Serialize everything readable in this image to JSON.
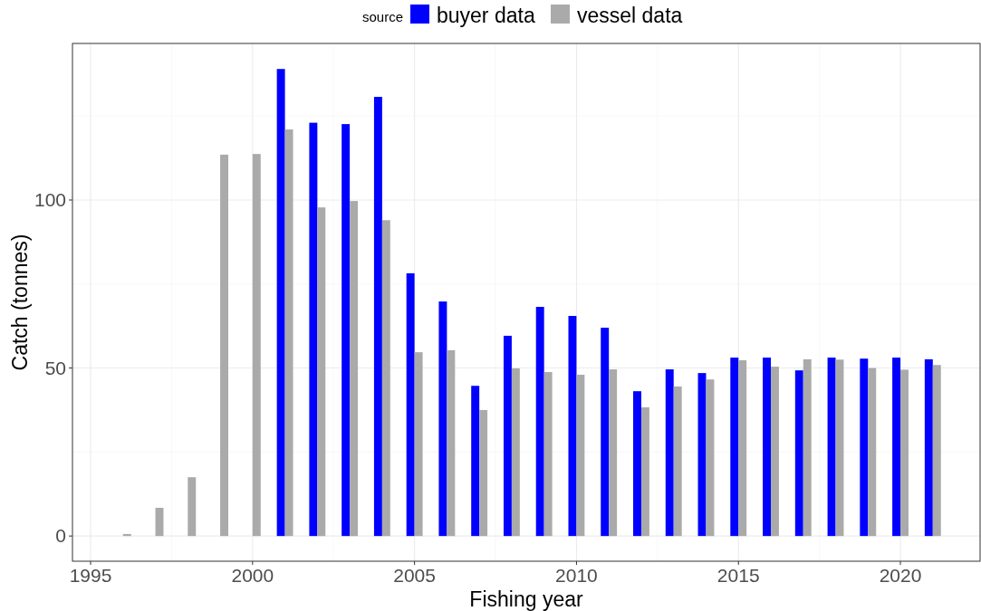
{
  "chart_data": {
    "type": "bar",
    "xlabel": "Fishing year",
    "ylabel": "Catch (tonnes)",
    "legend_title": "source",
    "legend": "top",
    "grid": true,
    "x": [
      1996,
      1997,
      1998,
      1999,
      2000,
      2001,
      2002,
      2003,
      2004,
      2005,
      2006,
      2007,
      2008,
      2009,
      2010,
      2011,
      2012,
      2013,
      2014,
      2015,
      2016,
      2017,
      2018,
      2019,
      2020,
      2021
    ],
    "xlim": [
      1994.44,
      2022.46
    ],
    "xticks": [
      1995,
      2000,
      2005,
      2010,
      2015,
      2020
    ],
    "ylim": [
      -7.5,
      146.6
    ],
    "yticks": [
      0,
      50,
      100
    ],
    "series": [
      {
        "name": "buyer data",
        "color": "#0000ff",
        "values": [
          null,
          null,
          null,
          null,
          null,
          139,
          123,
          122.6,
          130.7,
          78.2,
          69.8,
          44.7,
          59.6,
          68.2,
          65.5,
          62,
          43.1,
          49.6,
          48.5,
          53.1,
          53.1,
          49.3,
          53.1,
          52.8,
          53.1,
          52.6
        ]
      },
      {
        "name": "vessel data",
        "color": "#aaaaaa",
        "values": [
          0.6,
          8.4,
          17.5,
          113.5,
          113.7,
          121,
          97.8,
          99.7,
          94,
          54.7,
          55.3,
          37.5,
          49.9,
          48.8,
          48,
          49.6,
          38.3,
          44.5,
          46.6,
          52.3,
          50.4,
          52.6,
          52.5,
          50,
          49.5,
          50.9
        ]
      }
    ]
  }
}
